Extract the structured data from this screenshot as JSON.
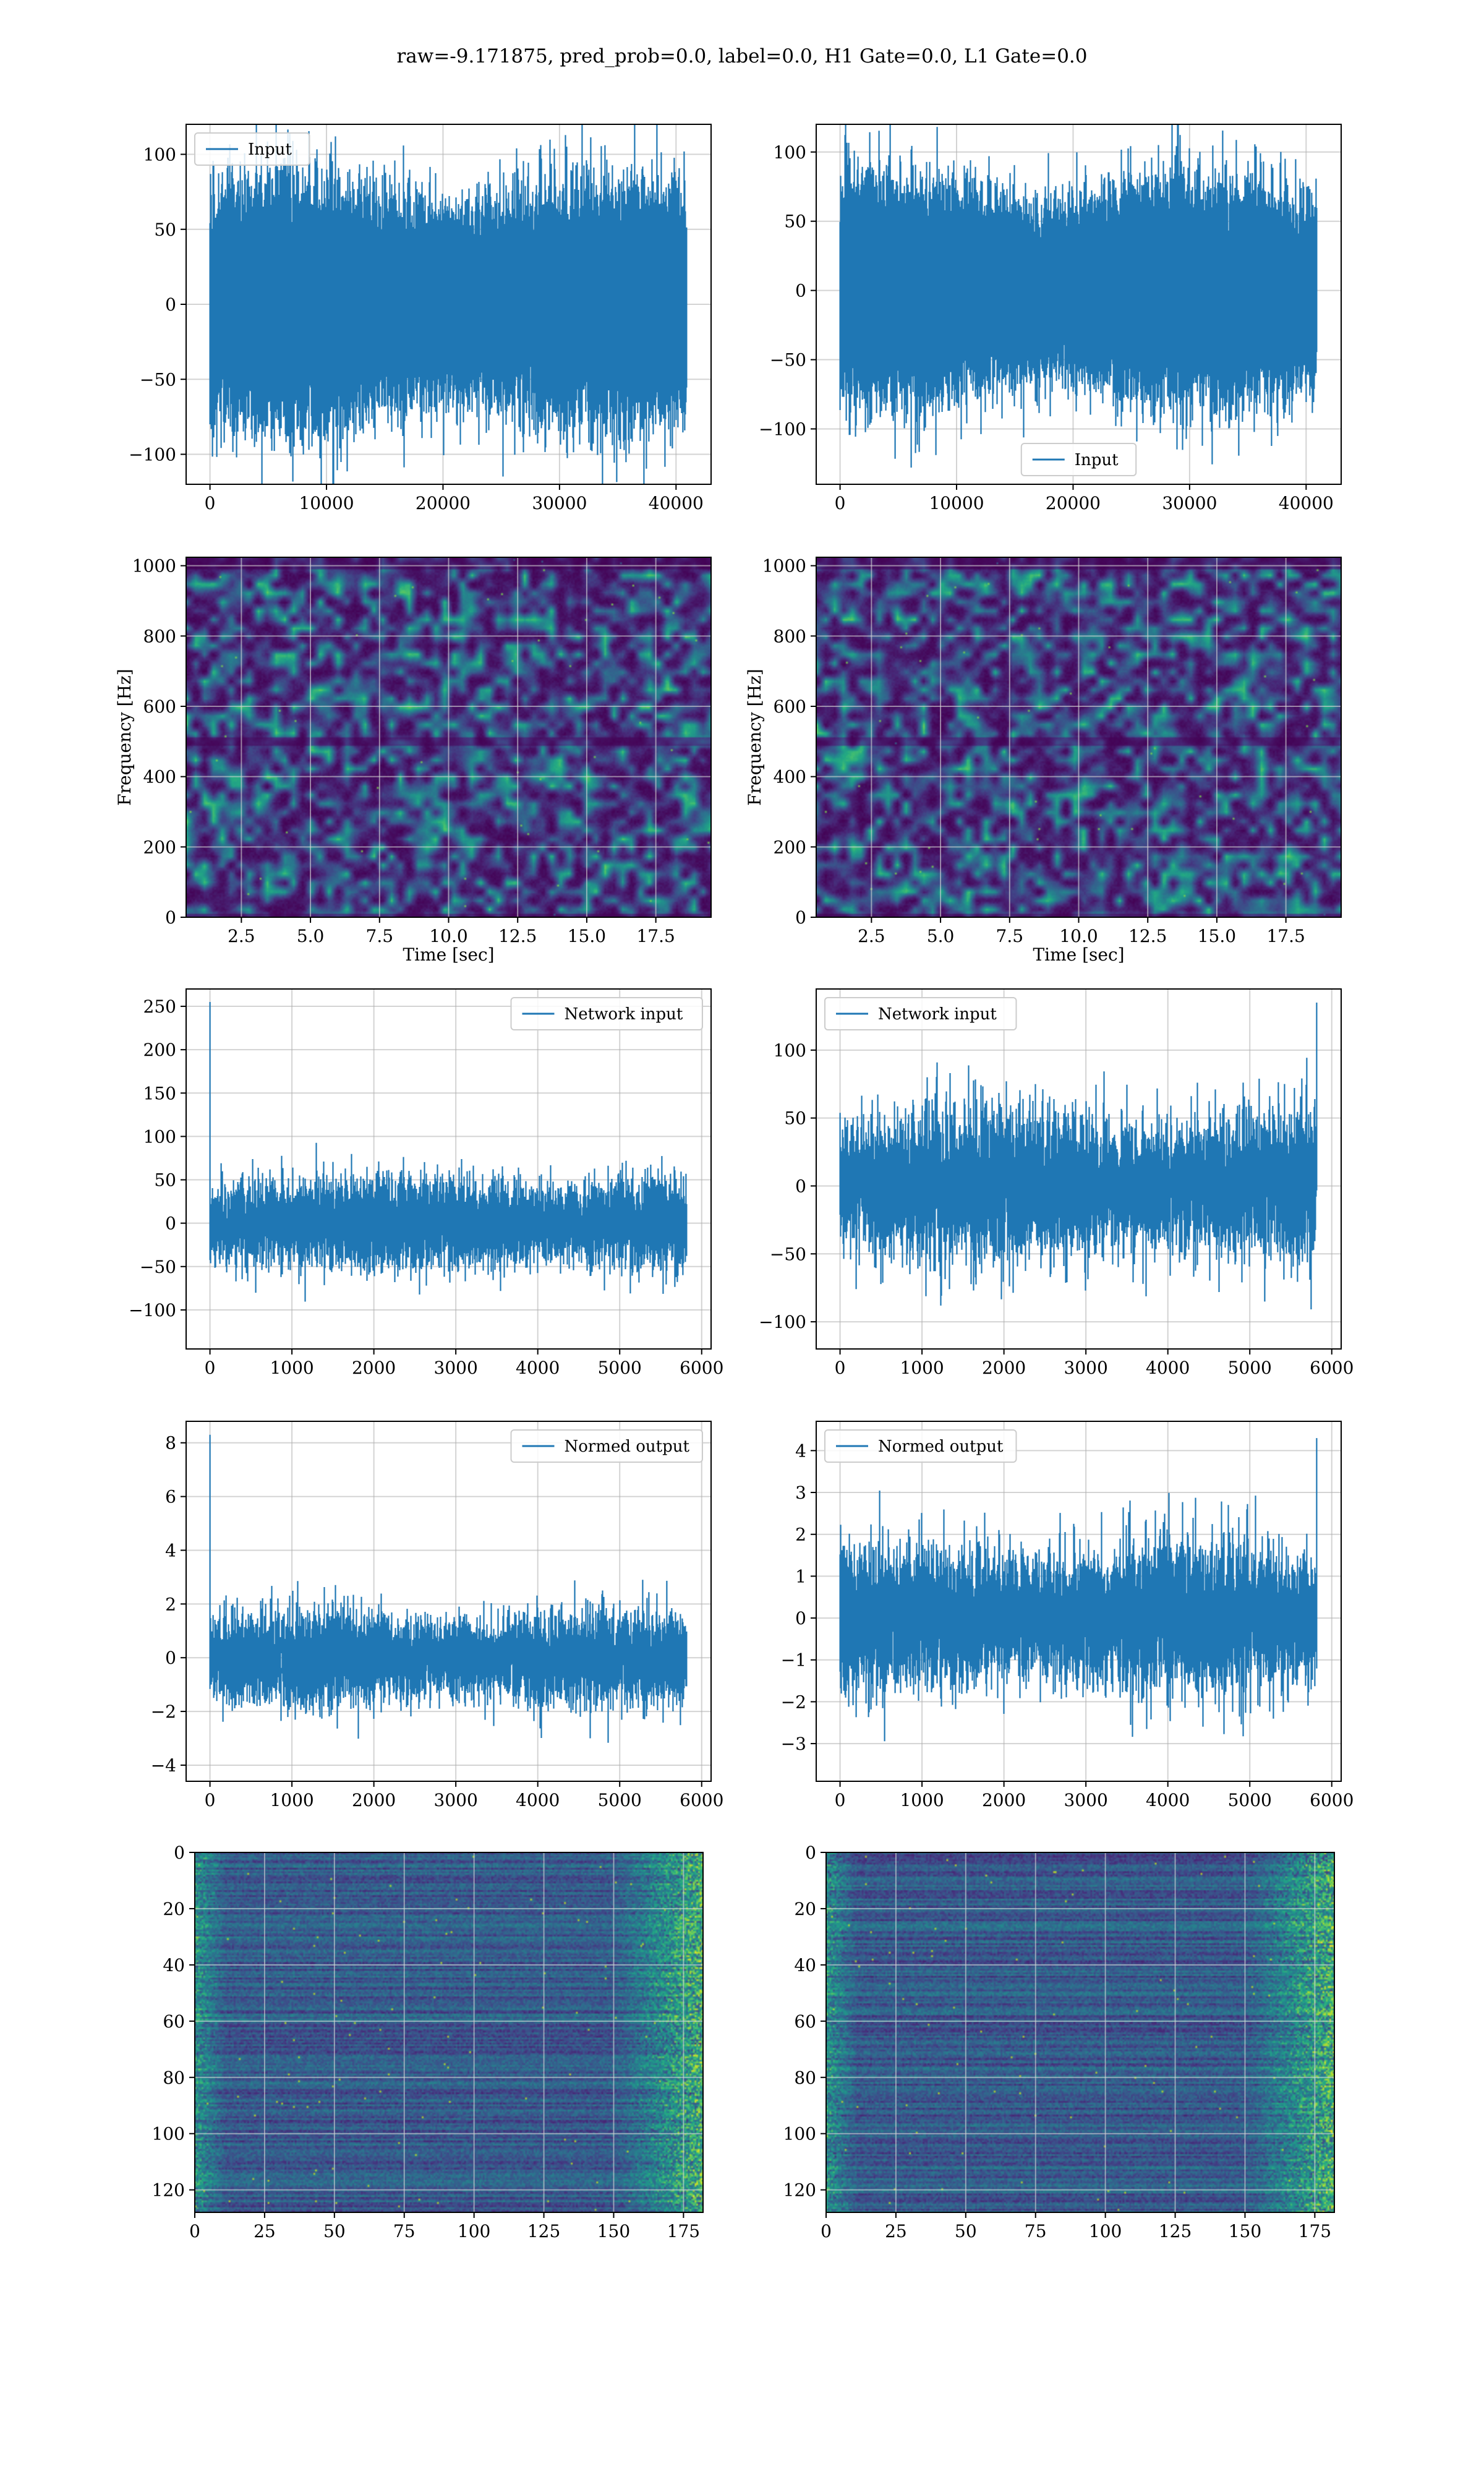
{
  "figure": {
    "suptitle": "raw=-9.171875, pred_prob=0.0, label=0.0, H1 Gate=0.0, L1 Gate=0.0",
    "series_color": "#1f77b4"
  },
  "chart_data": [
    {
      "id": "input-h1",
      "type": "line",
      "legend_loc": "upper-left",
      "grid": true,
      "series": [
        {
          "name": "Input"
        }
      ],
      "n_points": 40960,
      "amplitude": 30,
      "xlim": [
        -2048,
        43008
      ],
      "ylim": [
        -120,
        120
      ],
      "xticks": [
        0,
        10000,
        20000,
        30000,
        40000
      ],
      "yticks": [
        -100,
        -50,
        0,
        50,
        100
      ],
      "xtick_labels": [
        "0",
        "10000",
        "20000",
        "30000",
        "40000"
      ],
      "ytick_labels": [
        "−100",
        "−50",
        "0",
        "50",
        "100"
      ]
    },
    {
      "id": "input-l1",
      "type": "line",
      "legend_loc": "lower-center",
      "grid": true,
      "series": [
        {
          "name": "Input"
        }
      ],
      "n_points": 40960,
      "amplitude": 30,
      "xlim": [
        -2048,
        43008
      ],
      "ylim": [
        -140,
        120
      ],
      "xticks": [
        0,
        10000,
        20000,
        30000,
        40000
      ],
      "yticks": [
        -100,
        -50,
        0,
        50,
        100
      ],
      "xtick_labels": [
        "0",
        "10000",
        "20000",
        "30000",
        "40000"
      ],
      "ytick_labels": [
        "−100",
        "−50",
        "0",
        "50",
        "100"
      ]
    },
    {
      "id": "spectrogram-h1",
      "type": "heatmap",
      "colormap": "viridis",
      "grid": true,
      "xlabel": "Time [sec]",
      "ylabel": "Frequency [Hz]",
      "xlim": [
        0.5,
        19.5
      ],
      "ylim": [
        0,
        1024
      ],
      "xticks": [
        2.5,
        5.0,
        7.5,
        10.0,
        12.5,
        15.0,
        17.5
      ],
      "yticks": [
        0,
        200,
        400,
        600,
        800,
        1000
      ],
      "xtick_labels": [
        "2.5",
        "5.0",
        "7.5",
        "10.0",
        "12.5",
        "15.0",
        "17.5"
      ],
      "ytick_labels": [
        "0",
        "200",
        "400",
        "600",
        "800",
        "1000"
      ]
    },
    {
      "id": "spectrogram-l1",
      "type": "heatmap",
      "colormap": "viridis",
      "grid": true,
      "xlabel": "Time [sec]",
      "ylabel": "Frequency [Hz]",
      "xlim": [
        0.5,
        19.5
      ],
      "ylim": [
        0,
        1024
      ],
      "xticks": [
        2.5,
        5.0,
        7.5,
        10.0,
        12.5,
        15.0,
        17.5
      ],
      "yticks": [
        0,
        200,
        400,
        600,
        800,
        1000
      ],
      "xtick_labels": [
        "2.5",
        "5.0",
        "7.5",
        "10.0",
        "12.5",
        "15.0",
        "17.5"
      ],
      "ytick_labels": [
        "0",
        "200",
        "400",
        "600",
        "800",
        "1000"
      ]
    },
    {
      "id": "network-input-h1",
      "type": "line",
      "legend_loc": "upper-right",
      "grid": true,
      "series": [
        {
          "name": "Network input"
        }
      ],
      "n_points": 5824,
      "amplitude": 25,
      "spike_at_start": 255,
      "xlim": [
        -291,
        6115
      ],
      "ylim": [
        -145,
        270
      ],
      "xticks": [
        0,
        1000,
        2000,
        3000,
        4000,
        5000,
        6000
      ],
      "yticks": [
        -100,
        -50,
        0,
        50,
        100,
        150,
        200,
        250
      ],
      "xtick_labels": [
        "0",
        "1000",
        "2000",
        "3000",
        "4000",
        "5000",
        "6000"
      ],
      "ytick_labels": [
        "−100",
        "−50",
        "0",
        "50",
        "100",
        "150",
        "200",
        "250"
      ]
    },
    {
      "id": "network-input-l1",
      "type": "line",
      "legend_loc": "upper-left",
      "grid": true,
      "series": [
        {
          "name": "Network input"
        }
      ],
      "n_points": 5824,
      "amplitude": 25,
      "spike_at_end": 135,
      "xlim": [
        -291,
        6115
      ],
      "ylim": [
        -120,
        145
      ],
      "xticks": [
        0,
        1000,
        2000,
        3000,
        4000,
        5000,
        6000
      ],
      "yticks": [
        -100,
        -50,
        0,
        50,
        100
      ],
      "xtick_labels": [
        "0",
        "1000",
        "2000",
        "3000",
        "4000",
        "5000",
        "6000"
      ],
      "ytick_labels": [
        "−100",
        "−50",
        "0",
        "50",
        "100"
      ]
    },
    {
      "id": "normed-output-h1",
      "type": "line",
      "legend_loc": "upper-right",
      "grid": true,
      "series": [
        {
          "name": "Normed output"
        }
      ],
      "n_points": 5824,
      "amplitude": 0.8,
      "spike_at_start": 8.3,
      "xlim": [
        -291,
        6115
      ],
      "ylim": [
        -4.6,
        8.8
      ],
      "xticks": [
        0,
        1000,
        2000,
        3000,
        4000,
        5000,
        6000
      ],
      "yticks": [
        -4,
        -2,
        0,
        2,
        4,
        6,
        8
      ],
      "xtick_labels": [
        "0",
        "1000",
        "2000",
        "3000",
        "4000",
        "5000",
        "6000"
      ],
      "ytick_labels": [
        "−4",
        "−2",
        "0",
        "2",
        "4",
        "6",
        "8"
      ]
    },
    {
      "id": "normed-output-l1",
      "type": "line",
      "legend_loc": "upper-left",
      "grid": true,
      "series": [
        {
          "name": "Normed output"
        }
      ],
      "n_points": 5824,
      "amplitude": 0.8,
      "spike_at_end": 4.3,
      "xlim": [
        -291,
        6115
      ],
      "ylim": [
        -3.9,
        4.7
      ],
      "xticks": [
        0,
        1000,
        2000,
        3000,
        4000,
        5000,
        6000
      ],
      "yticks": [
        -3,
        -2,
        -1,
        0,
        1,
        2,
        3,
        4
      ],
      "xtick_labels": [
        "0",
        "1000",
        "2000",
        "3000",
        "4000",
        "5000",
        "6000"
      ],
      "ytick_labels": [
        "−3",
        "−2",
        "−1",
        "0",
        "1",
        "2",
        "3",
        "4"
      ]
    },
    {
      "id": "feature-map-h1",
      "type": "heatmap",
      "colormap": "viridis",
      "grid": true,
      "y_inverted": true,
      "n_cols": 182,
      "n_rows": 128,
      "xlim": [
        0,
        182
      ],
      "ylim": [
        0,
        128
      ],
      "xticks": [
        0,
        25,
        50,
        75,
        100,
        125,
        150,
        175
      ],
      "yticks": [
        0,
        20,
        40,
        60,
        80,
        100,
        120
      ],
      "xtick_labels": [
        "0",
        "25",
        "50",
        "75",
        "100",
        "125",
        "150",
        "175"
      ],
      "ytick_labels": [
        "0",
        "20",
        "40",
        "60",
        "80",
        "100",
        "120"
      ]
    },
    {
      "id": "feature-map-l1",
      "type": "heatmap",
      "colormap": "viridis",
      "grid": true,
      "y_inverted": true,
      "n_cols": 182,
      "n_rows": 128,
      "xlim": [
        0,
        182
      ],
      "ylim": [
        0,
        128
      ],
      "xticks": [
        0,
        25,
        50,
        75,
        100,
        125,
        150,
        175
      ],
      "yticks": [
        0,
        20,
        40,
        60,
        80,
        100,
        120
      ],
      "xtick_labels": [
        "0",
        "25",
        "50",
        "75",
        "100",
        "125",
        "150",
        "175"
      ],
      "ytick_labels": [
        "0",
        "20",
        "40",
        "60",
        "80",
        "100",
        "120"
      ]
    }
  ]
}
